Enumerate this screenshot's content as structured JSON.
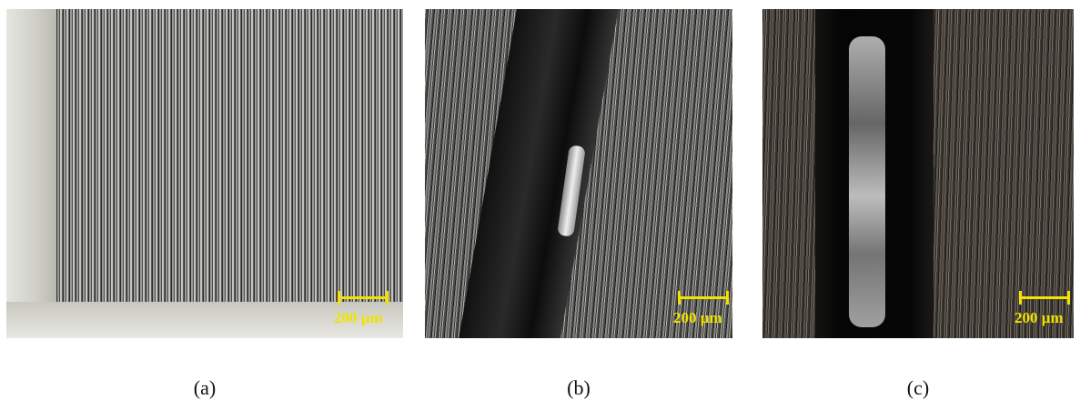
{
  "panels": [
    {
      "scale_bar": "200 µm",
      "caption": "(a)"
    },
    {
      "scale_bar": "200 µm",
      "caption": "(b)"
    },
    {
      "scale_bar": "200 µm",
      "caption": "(c)"
    }
  ]
}
